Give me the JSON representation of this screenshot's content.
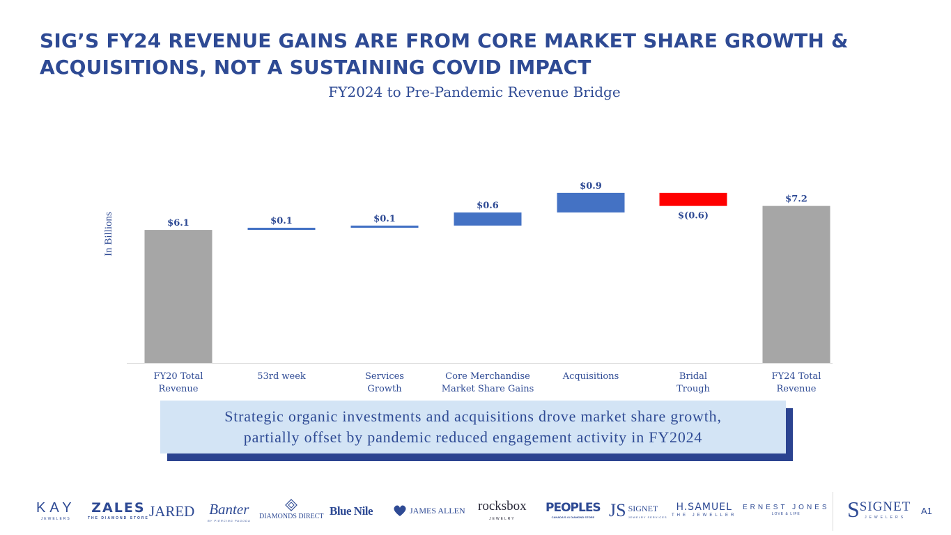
{
  "title": {
    "line1": "SIG’S FY24 REVENUE GAINS ARE FROM CORE MARKET SHARE GROWTH &",
    "line2": "ACQUISITIONS, NOT A SUSTAINING COVID IMPACT"
  },
  "chart_data": {
    "type": "waterfall",
    "title": "FY2024 to Pre-Pandemic Revenue Bridge",
    "ylabel": "In Billions",
    "xlabel": "",
    "categories": [
      "FY20 Total Revenue",
      "53rd week",
      "Services Growth",
      "Core Merchandise Market Share Gains",
      "Acquisitions",
      "Bridal Trough",
      "FY24 Total Revenue"
    ],
    "category_lines": [
      [
        "FY20 Total",
        "Revenue"
      ],
      [
        "53rd week"
      ],
      [
        "Services",
        "Growth"
      ],
      [
        "Core Merchandise",
        "Market Share Gains"
      ],
      [
        "Acquisitions"
      ],
      [
        "Bridal",
        "Trough"
      ],
      [
        "FY24 Total",
        "Revenue"
      ]
    ],
    "kinds": [
      "total",
      "increase",
      "increase",
      "increase",
      "increase",
      "decrease",
      "total"
    ],
    "values": [
      6.1,
      0.1,
      0.1,
      0.6,
      0.9,
      -0.6,
      7.2
    ],
    "data_labels": [
      "$6.1",
      "$0.1",
      "$0.1",
      "$0.6",
      "$0.9",
      "$(0.6)",
      "$7.2"
    ],
    "colors": {
      "total": "#a6a6a6",
      "increase": "#4472c4",
      "decrease": "#ff0000",
      "text": "#2e4a94"
    }
  },
  "callout": {
    "line1": "Strategic organic investments and acquisitions drove market share growth,",
    "line2": "partially offset by pandemic reduced engagement activity in FY2024"
  },
  "brands": {
    "kay": "KAY",
    "kay_sub": "JEWELERS",
    "zales": "ZALES",
    "zales_sub": "THE DIAMOND STORE",
    "jared": "JARED",
    "banter": "Banter",
    "banter_sub": "BY PIERCING PAGODA",
    "diamonds_direct": "DIAMONDS DIRECT",
    "blue_nile": "Blue Nile",
    "james_allen": "JAMES ALLEN",
    "rocksbox": "rocksbox",
    "rocksbox_sub": "JEWELRY",
    "peoples": "PEOPLES",
    "peoples_sub": "CANADA'S #1 DIAMOND STORE",
    "signet_services": "SIGNET",
    "signet_services_sub": "JEWELRY SERVICES",
    "hsamuel": "H.SAMUEL",
    "hsamuel_sub": "THE JEWELLER",
    "ernest_jones": "ERNEST JONES",
    "ernest_jones_sub": "LOVE & LIFE",
    "signet": "SIGNET",
    "signet_sub": "JEWELERS"
  },
  "page_number": "A1"
}
